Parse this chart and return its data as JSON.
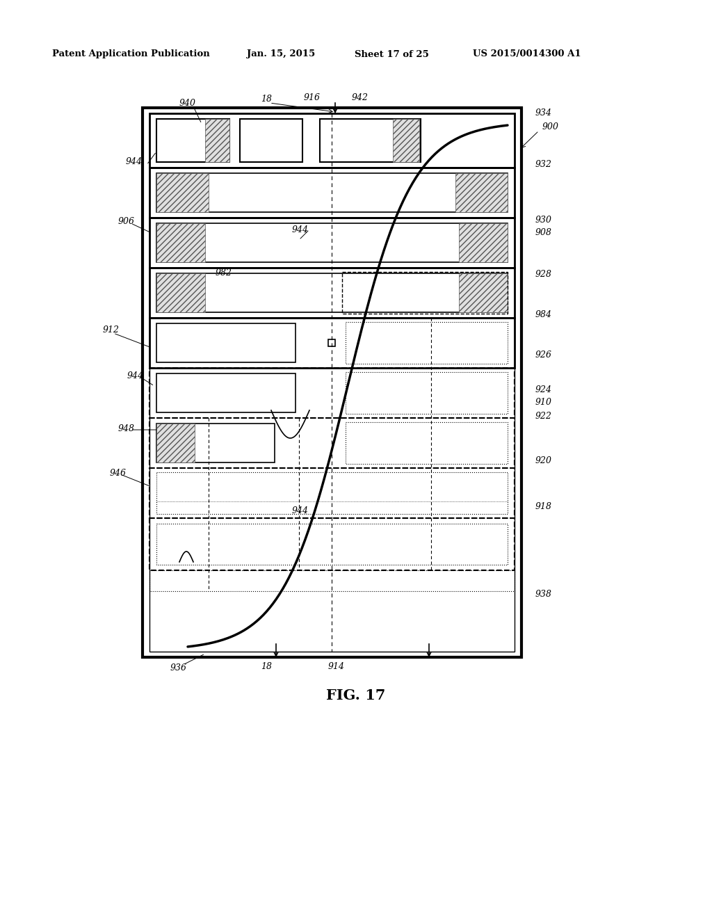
{
  "bg_color": "#ffffff",
  "header_text": "Patent Application Publication",
  "header_date": "Jan. 15, 2015",
  "header_sheet": "Sheet 17 of 25",
  "header_patent": "US 2015/0014300 A1",
  "fig_label": "FIG. 17"
}
